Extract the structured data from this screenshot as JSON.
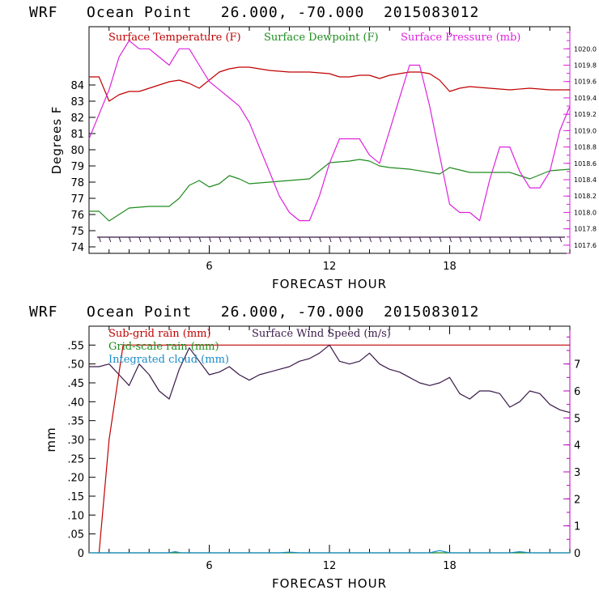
{
  "chart_data": [
    {
      "type": "line",
      "title": "WRF   Ocean Point   26.000, -70.000  2015083012",
      "xlabel": "FORECAST HOUR",
      "ylabel": "Degrees F",
      "xlim": [
        0,
        24
      ],
      "ylim": [
        73.6,
        87.6
      ],
      "y2lim": [
        1017.5,
        1020.27
      ],
      "x_ticks": [
        6,
        12,
        18
      ],
      "y_ticks": [
        74,
        75,
        76,
        77,
        78,
        79,
        80,
        81,
        82,
        83,
        84
      ],
      "y2_ticks": [
        1017.6,
        1017.8,
        1018.0,
        1018.2,
        1018.4,
        1018.6,
        1018.8,
        1019.0,
        1019.2,
        1019.4,
        1019.6,
        1019.8,
        1020.0
      ],
      "y2_tick_labels": [
        "1017.6",
        "1017.8",
        "1018.0",
        "1018.2",
        "1018.4",
        "1018.6",
        "1018.8",
        "1019.0",
        "1019.2",
        "1019.4",
        "1019.6",
        "1019.8",
        "1020.0"
      ],
      "grid": false,
      "legend": "top-inside",
      "wind_barbs": {
        "color": "#3a1a4a",
        "y": 74.6,
        "interval_hours": 0.5
      },
      "series": [
        {
          "name": "Surface Temperature (F)",
          "color": "#c00000",
          "axis": "left",
          "x": [
            0,
            0.5,
            1,
            1.5,
            2,
            2.5,
            3,
            4,
            4.5,
            5,
            5.5,
            6,
            6.5,
            7,
            7.5,
            8,
            8.5,
            9,
            10,
            11,
            12,
            12.5,
            13,
            13.5,
            14,
            14.5,
            15,
            15.5,
            16,
            16.5,
            17,
            17.5,
            18,
            18.5,
            19,
            20,
            21,
            22,
            23,
            24
          ],
          "y": [
            84.5,
            84.5,
            83.0,
            83.4,
            83.6,
            83.6,
            83.8,
            84.2,
            84.3,
            84.1,
            83.8,
            84.3,
            84.8,
            85.0,
            85.1,
            85.1,
            85.0,
            84.9,
            84.8,
            84.8,
            84.7,
            84.5,
            84.5,
            84.6,
            84.6,
            84.4,
            84.6,
            84.7,
            84.8,
            84.8,
            84.7,
            84.3,
            83.6,
            83.8,
            83.9,
            83.8,
            83.7,
            83.8,
            83.7,
            83.7
          ]
        },
        {
          "name": "Surface Dewpoint (F)",
          "color": "#1e8c1e",
          "axis": "left",
          "x": [
            0,
            0.5,
            1,
            1.5,
            2,
            3,
            4,
            4.5,
            5,
            5.5,
            6,
            6.5,
            7,
            7.5,
            8,
            9,
            10,
            11,
            12,
            13,
            13.5,
            14,
            14.5,
            15,
            16,
            17,
            17.5,
            18,
            19,
            20,
            21,
            22,
            23,
            24
          ],
          "y": [
            76.2,
            76.2,
            75.6,
            76.0,
            76.4,
            76.5,
            76.5,
            77.0,
            77.8,
            78.1,
            77.7,
            77.9,
            78.4,
            78.2,
            77.9,
            78.0,
            78.1,
            78.2,
            79.2,
            79.3,
            79.4,
            79.3,
            79.0,
            78.9,
            78.8,
            78.6,
            78.5,
            78.9,
            78.6,
            78.6,
            78.6,
            78.2,
            78.7,
            78.8
          ]
        },
        {
          "name": "Surface Pressure (mb)",
          "color": "#dd22dd",
          "axis": "right",
          "x": [
            0,
            0.5,
            1,
            1.5,
            2,
            2.5,
            3,
            3.5,
            4,
            4.5,
            5,
            5.5,
            6,
            6.5,
            7,
            7.5,
            8,
            8.5,
            9,
            9.5,
            10,
            10.5,
            11,
            11.5,
            12,
            12.5,
            13,
            13.5,
            14,
            14.5,
            15,
            15.5,
            16,
            16.5,
            17,
            17.5,
            18,
            18.5,
            19,
            19.5,
            20,
            20.5,
            21,
            21.5,
            22,
            22.5,
            23,
            23.5,
            24
          ],
          "y": [
            1018.9,
            1019.2,
            1019.5,
            1019.9,
            1020.1,
            1020.0,
            1020.0,
            1019.9,
            1019.8,
            1020.0,
            1020.0,
            1019.8,
            1019.6,
            1019.5,
            1019.4,
            1019.3,
            1019.1,
            1018.8,
            1018.5,
            1018.2,
            1018.0,
            1017.9,
            1017.9,
            1018.2,
            1018.6,
            1018.9,
            1018.9,
            1018.9,
            1018.7,
            1018.6,
            1019.0,
            1019.4,
            1019.8,
            1019.8,
            1019.3,
            1018.7,
            1018.1,
            1018.0,
            1018.0,
            1017.9,
            1018.4,
            1018.8,
            1018.8,
            1018.5,
            1018.3,
            1018.3,
            1018.5,
            1019.0,
            1019.3
          ]
        }
      ]
    },
    {
      "type": "line",
      "title": "WRF   Ocean Point   26.000, -70.000  2015083012",
      "xlabel": "FORECAST HOUR",
      "ylabel": "mm",
      "xlim": [
        0,
        24
      ],
      "ylim": [
        0,
        0.6
      ],
      "y2lim": [
        0,
        8.4
      ],
      "x_ticks": [
        6,
        12,
        18
      ],
      "y_ticks": [
        0,
        0.05,
        0.1,
        0.15,
        0.2,
        0.25,
        0.3,
        0.35,
        0.4,
        0.45,
        0.5,
        0.55
      ],
      "y_tick_labels": [
        "0",
        ".05",
        ".10",
        ".15",
        ".20",
        ".25",
        ".30",
        ".35",
        ".40",
        ".45",
        ".50",
        ".55"
      ],
      "y2_ticks": [
        0,
        1,
        2,
        3,
        4,
        5,
        6,
        7
      ],
      "y2_tick_labels": [
        "0",
        "1",
        "2",
        "3",
        "4",
        "5",
        "6",
        "7"
      ],
      "grid": false,
      "legend": "top-inside",
      "series": [
        {
          "name": "Sub-grid rain (mm)",
          "color": "#c00000",
          "axis": "left",
          "x": [
            0.5,
            1.0,
            1.7,
            24
          ],
          "y": [
            0,
            0.3,
            0.55,
            0.55
          ]
        },
        {
          "name": "Grid-scale rain (mm)",
          "color": "#1e8c1e",
          "axis": "left",
          "x": [
            0,
            24
          ],
          "y": [
            0,
            0
          ]
        },
        {
          "name": "Integrated cloud (mm)",
          "color": "#1a8cc8",
          "axis": "left",
          "x": [
            0,
            4,
            4.3,
            4.6,
            9.5,
            10,
            10.5,
            17,
            17.5,
            18,
            21,
            21.5,
            22,
            24
          ],
          "y": [
            0,
            0,
            0.003,
            0,
            0,
            0.002,
            0,
            0,
            0.006,
            0,
            0,
            0.003,
            0,
            0
          ]
        },
        {
          "name": "Surface Wind Speed (m/s)",
          "color": "#3a1a4a",
          "axis": "right",
          "x": [
            0,
            0.5,
            1,
            1.5,
            2,
            2.5,
            3,
            3.5,
            4,
            4.5,
            5,
            5.5,
            6,
            6.5,
            7,
            7.5,
            8,
            8.5,
            9,
            9.5,
            10,
            10.5,
            11,
            11.5,
            12,
            12.5,
            13,
            13.5,
            14,
            14.5,
            15,
            15.5,
            16,
            16.5,
            17,
            17.5,
            18,
            18.5,
            19,
            19.5,
            20,
            20.5,
            21,
            21.5,
            22,
            22.5,
            23,
            23.5,
            24
          ],
          "y": [
            6.9,
            6.9,
            7.0,
            6.6,
            6.2,
            7.0,
            6.6,
            6.0,
            5.7,
            6.8,
            7.6,
            7.1,
            6.6,
            6.7,
            6.9,
            6.6,
            6.4,
            6.6,
            6.7,
            6.8,
            6.9,
            7.1,
            7.2,
            7.4,
            7.7,
            7.1,
            7.0,
            7.1,
            7.4,
            7.0,
            6.8,
            6.7,
            6.5,
            6.3,
            6.2,
            6.3,
            6.5,
            5.9,
            5.7,
            6.0,
            6.0,
            5.9,
            5.4,
            5.6,
            6.0,
            5.9,
            5.5,
            5.3,
            5.2
          ]
        }
      ]
    }
  ]
}
